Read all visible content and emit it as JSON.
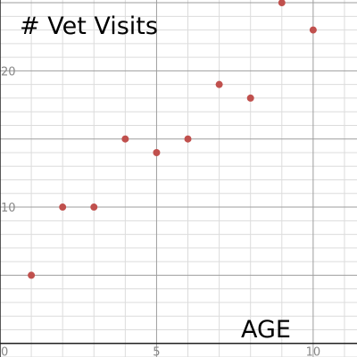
{
  "chart_data": {
    "type": "scatter",
    "title": "# Vet Visits",
    "xlabel": "AGE",
    "ylabel": "",
    "xlim": [
      0,
      11.4
    ],
    "ylim": [
      -1,
      25.2
    ],
    "x_ticks": [
      {
        "value": 0,
        "label": "0"
      },
      {
        "value": 5,
        "label": "5"
      },
      {
        "value": 10,
        "label": "10"
      }
    ],
    "y_ticks": [
      {
        "value": 10,
        "label": "10"
      },
      {
        "value": 20,
        "label": "20"
      }
    ],
    "grid": true,
    "point_color": "#c0504d",
    "series": [
      {
        "points": [
          {
            "x": 1,
            "y": 5
          },
          {
            "x": 2,
            "y": 10
          },
          {
            "x": 3,
            "y": 10
          },
          {
            "x": 4,
            "y": 15
          },
          {
            "x": 5,
            "y": 14
          },
          {
            "x": 6,
            "y": 15
          },
          {
            "x": 7,
            "y": 19
          },
          {
            "x": 8,
            "y": 18
          },
          {
            "x": 9,
            "y": 25
          },
          {
            "x": 10,
            "y": 23
          }
        ]
      }
    ]
  }
}
